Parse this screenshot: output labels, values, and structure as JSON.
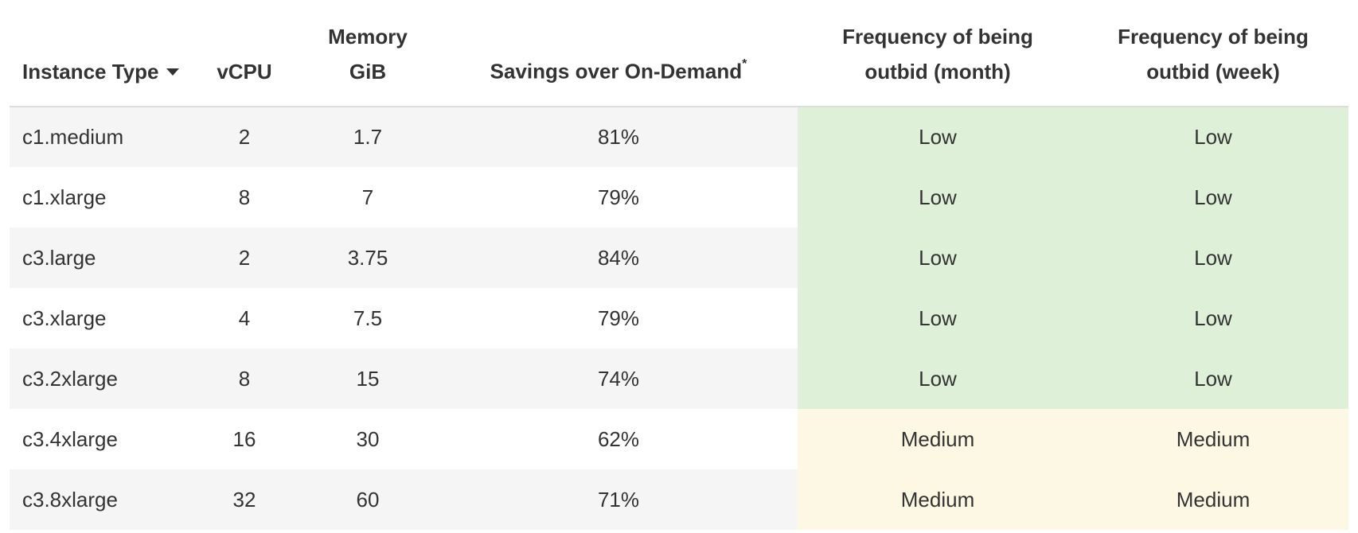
{
  "table": {
    "headers": {
      "instance_type": "Instance Type",
      "vcpu": "vCPU",
      "memory_line1": "Memory",
      "memory_line2": "GiB",
      "savings": "Savings over On-Demand",
      "savings_marker": "*",
      "freq_month_line1": "Frequency of being",
      "freq_month_line2": "outbid (month)",
      "freq_week_line1": "Frequency of being",
      "freq_week_line2": "outbid (week)"
    },
    "sort": {
      "column": "Instance Type",
      "icon": "caret-down-icon"
    },
    "rows": [
      {
        "type": "c1.medium",
        "vcpu": "2",
        "memory": "1.7",
        "savings": "81%",
        "freq_month": "Low",
        "freq_week": "Low"
      },
      {
        "type": "c1.xlarge",
        "vcpu": "8",
        "memory": "7",
        "savings": "79%",
        "freq_month": "Low",
        "freq_week": "Low"
      },
      {
        "type": "c3.large",
        "vcpu": "2",
        "memory": "3.75",
        "savings": "84%",
        "freq_month": "Low",
        "freq_week": "Low"
      },
      {
        "type": "c3.xlarge",
        "vcpu": "4",
        "memory": "7.5",
        "savings": "79%",
        "freq_month": "Low",
        "freq_week": "Low"
      },
      {
        "type": "c3.2xlarge",
        "vcpu": "8",
        "memory": "15",
        "savings": "74%",
        "freq_month": "Low",
        "freq_week": "Low"
      },
      {
        "type": "c3.4xlarge",
        "vcpu": "16",
        "memory": "30",
        "savings": "62%",
        "freq_month": "Medium",
        "freq_week": "Medium"
      },
      {
        "type": "c3.8xlarge",
        "vcpu": "32",
        "memory": "60",
        "savings": "71%",
        "freq_month": "Medium",
        "freq_week": "Medium"
      }
    ]
  },
  "colors": {
    "low": "#dff0d8",
    "medium": "#fcf8e3",
    "stripe": "#f5f5f5",
    "text": "#333333"
  }
}
